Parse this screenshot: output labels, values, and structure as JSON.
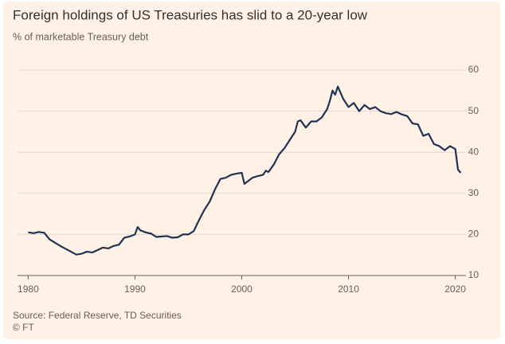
{
  "chart_data": {
    "type": "line",
    "title": "Foreign holdings of US Treasuries has slid to a 20-year low",
    "subtitle": "% of marketable Treasury debt",
    "source": "Source: Federal Reserve, TD Securities",
    "credit": "© FT",
    "color": "#1f3352",
    "grid": true,
    "xlim": [
      1979,
      2021
    ],
    "xticks": [
      1980,
      1990,
      2000,
      2010,
      2020
    ],
    "ylim": [
      10,
      60
    ],
    "yticks": [
      10,
      20,
      30,
      40,
      50,
      60
    ],
    "x": [
      1980,
      1980.5,
      1981,
      1981.5,
      1982,
      1982.5,
      1983,
      1983.5,
      1984,
      1984.5,
      1985,
      1985.5,
      1986,
      1986.5,
      1987,
      1987.5,
      1988,
      1988.5,
      1989,
      1989.5,
      1990,
      1990.25,
      1990.5,
      1991,
      1991.5,
      1992,
      1992.5,
      1993,
      1993.5,
      1994,
      1994.5,
      1995,
      1995.5,
      1996,
      1996.5,
      1997,
      1997.5,
      1998,
      1998.5,
      1999,
      1999.5,
      2000,
      2000.25,
      2000.5,
      2001,
      2001.5,
      2002,
      2002.25,
      2002.5,
      2003,
      2003.5,
      2004,
      2004.5,
      2005,
      2005.25,
      2005.5,
      2006,
      2006.5,
      2007,
      2007.5,
      2008,
      2008.25,
      2008.5,
      2008.75,
      2009,
      2009.5,
      2010,
      2010.5,
      2011,
      2011.5,
      2012,
      2012.5,
      2013,
      2013.5,
      2014,
      2014.5,
      2015,
      2015.5,
      2016,
      2016.5,
      2017,
      2017.5,
      2018,
      2018.5,
      2019,
      2019.5,
      2020,
      2020.25,
      2020.5
    ],
    "values": [
      20.5,
      20.3,
      20.6,
      20.4,
      18.8,
      18,
      17.2,
      16.5,
      15.8,
      15.1,
      15.3,
      15.8,
      15.6,
      16.2,
      16.8,
      16.6,
      17.2,
      17.5,
      19.2,
      19.5,
      20,
      21.8,
      21,
      20.5,
      20.2,
      19.4,
      19.5,
      19.6,
      19.2,
      19.3,
      20,
      20,
      20.8,
      23.5,
      26,
      28,
      31,
      33.5,
      33.8,
      34.5,
      34.8,
      35,
      32.3,
      32.8,
      33.8,
      34.2,
      34.5,
      35.5,
      35.2,
      37,
      39.5,
      41,
      43,
      45,
      47.5,
      47.8,
      46,
      47.5,
      47.5,
      48.5,
      50.5,
      52.5,
      55,
      54,
      56,
      53,
      51,
      52,
      50,
      51.5,
      50.5,
      51,
      50,
      49.5,
      49.3,
      49.8,
      49.2,
      48.8,
      47,
      46.8,
      44,
      44.5,
      42,
      41.5,
      40.5,
      41.5,
      40.8,
      35.8,
      35
    ]
  }
}
